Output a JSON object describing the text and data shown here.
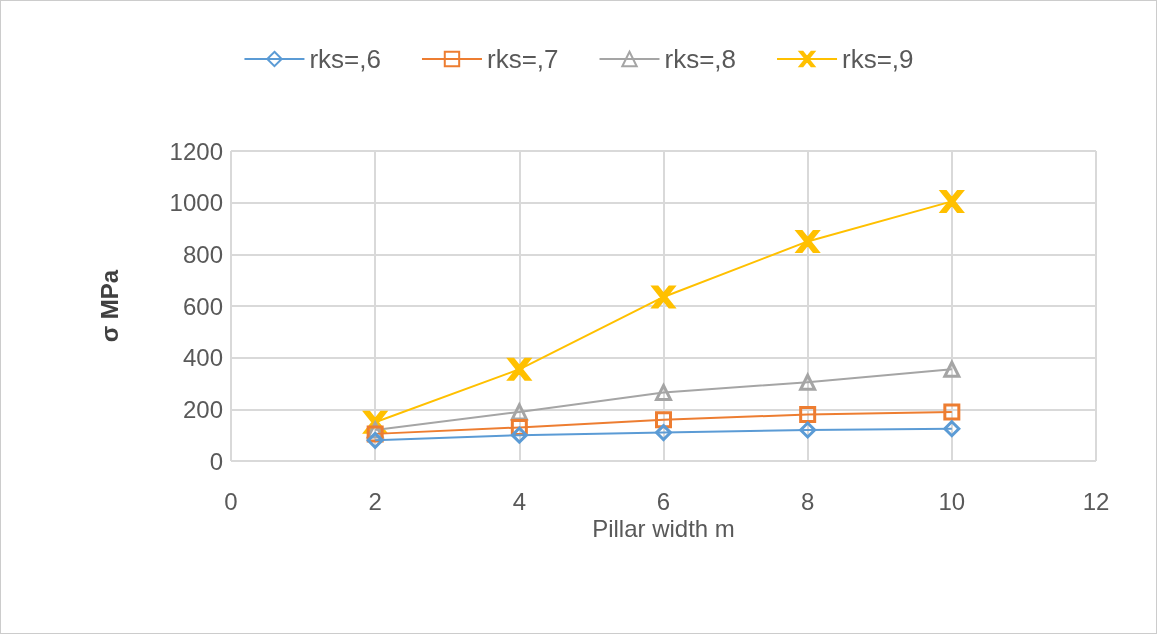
{
  "chart_data": {
    "type": "line",
    "xlabel": "Pillar width m",
    "ylabel": "σ MPa",
    "x": [
      2,
      4,
      6,
      8,
      10
    ],
    "xlim": [
      0,
      12
    ],
    "xticks": [
      0,
      2,
      4,
      6,
      8,
      10,
      12
    ],
    "ylim": [
      0,
      1200
    ],
    "yticks": [
      0,
      200,
      400,
      600,
      800,
      1000,
      1200
    ],
    "grid": true,
    "legend": "top",
    "series": [
      {
        "name": "rks=,6",
        "color": "#5b9bd5",
        "marker": "diamond",
        "values": [
          80,
          100,
          110,
          120,
          125
        ]
      },
      {
        "name": "rks=,7",
        "color": "#ed7d31",
        "marker": "square",
        "values": [
          105,
          130,
          160,
          180,
          190
        ]
      },
      {
        "name": "rks=,8",
        "color": "#a5a5a5",
        "marker": "triangle",
        "values": [
          120,
          190,
          265,
          305,
          355
        ]
      },
      {
        "name": "rks=,9",
        "color": "#ffc000",
        "marker": "cross",
        "values": [
          150,
          355,
          635,
          850,
          1005
        ]
      }
    ]
  }
}
